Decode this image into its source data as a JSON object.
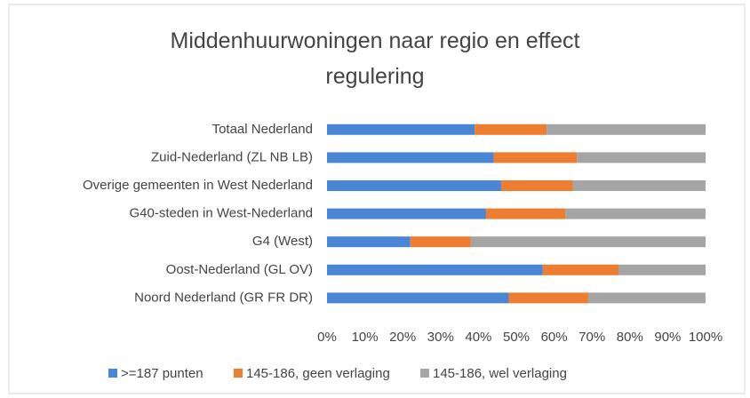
{
  "chart_data": {
    "type": "stacked_barh",
    "title": "Middenhuurwoningen naar regio en effect regulering",
    "categories": [
      "Totaal Nederland",
      "Zuid-Nederland (ZL NB LB)",
      "Overige gemeenten in West Nederland",
      "G40-steden in West-Nederland",
      "G4 (West)",
      "Oost-Nederland (GL OV)",
      "Noord Nederland (GR FR DR)"
    ],
    "series": [
      {
        "name": ">=187 punten",
        "color": "#4a86d6",
        "values": [
          39,
          44,
          46,
          42,
          22,
          57,
          48
        ]
      },
      {
        "name": "145-186, geen verlaging",
        "color": "#ed7d31",
        "values": [
          19,
          22,
          19,
          21,
          16,
          20,
          21
        ]
      },
      {
        "name": "145-186, wel verlaging",
        "color": "#a5a5a5",
        "values": [
          42,
          34,
          35,
          37,
          62,
          23,
          31
        ]
      }
    ],
    "xlim": [
      0,
      100
    ],
    "xticks": [
      {
        "value": 0,
        "label": "0%"
      },
      {
        "value": 10,
        "label": "10%"
      },
      {
        "value": 20,
        "label": "20%"
      },
      {
        "value": 30,
        "label": "30%"
      },
      {
        "value": 40,
        "label": "40%"
      },
      {
        "value": 50,
        "label": "50%"
      },
      {
        "value": 60,
        "label": "60%"
      },
      {
        "value": 70,
        "label": "70%"
      },
      {
        "value": 80,
        "label": "80%"
      },
      {
        "value": 90,
        "label": "90%"
      },
      {
        "value": 100,
        "label": "100%"
      }
    ],
    "grid": false,
    "legend": "bottom"
  }
}
